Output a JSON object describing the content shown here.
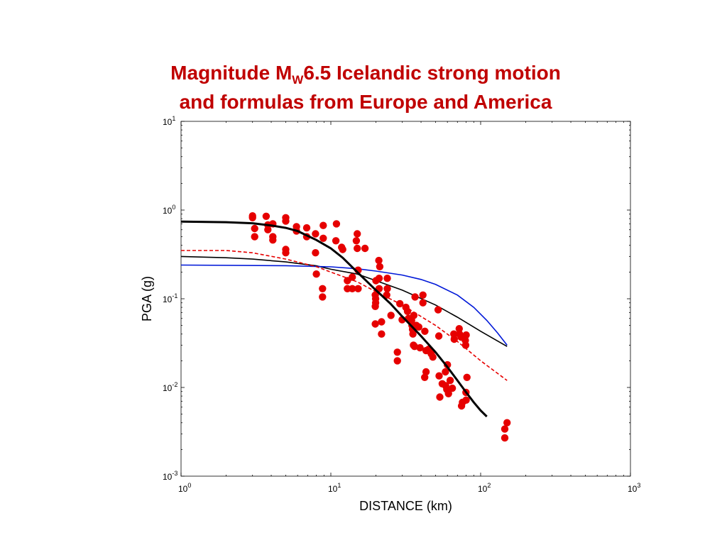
{
  "slide": {
    "title_part1": "Magnitude M",
    "title_sub": "W",
    "title_part2": "6.5 Icelandic strong motion",
    "title_line2": "and formulas from Europe and America"
  },
  "chart_data": {
    "type": "scatter",
    "xlabel": "DISTANCE (km)",
    "ylabel": "PGA (g)",
    "xscale": "log",
    "yscale": "log",
    "xlim": [
      1,
      1000
    ],
    "ylim": [
      0.001,
      10
    ],
    "x_tick_labels": [
      {
        "base": "10",
        "exp": "0",
        "value": 1
      },
      {
        "base": "10",
        "exp": "1",
        "value": 10
      },
      {
        "base": "10",
        "exp": "2",
        "value": 100
      },
      {
        "base": "10",
        "exp": "3",
        "value": 1000
      }
    ],
    "y_tick_labels": [
      {
        "base": "10",
        "exp": "-3",
        "value": 0.001
      },
      {
        "base": "10",
        "exp": "-2",
        "value": 0.01
      },
      {
        "base": "10",
        "exp": "-1",
        "value": 0.1
      },
      {
        "base": "10",
        "exp": "0",
        "value": 1
      },
      {
        "base": "10",
        "exp": "1",
        "value": 10
      }
    ],
    "grid": false,
    "colors": {
      "points": "#e60000",
      "thick": "#000000",
      "thin": "#000000",
      "blue": "#0018d8",
      "dashed": "#e60000"
    },
    "points": [
      [
        3.0,
        0.86
      ],
      [
        3.0,
        0.82
      ],
      [
        3.1,
        0.62
      ],
      [
        3.1,
        0.5
      ],
      [
        3.7,
        0.85
      ],
      [
        3.8,
        0.68
      ],
      [
        3.8,
        0.6
      ],
      [
        4.1,
        0.7
      ],
      [
        4.1,
        0.5
      ],
      [
        4.1,
        0.46
      ],
      [
        5.0,
        0.82
      ],
      [
        5.0,
        0.75
      ],
      [
        5.0,
        0.36
      ],
      [
        5.0,
        0.33
      ],
      [
        5.9,
        0.65
      ],
      [
        5.9,
        0.58
      ],
      [
        6.9,
        0.63
      ],
      [
        6.9,
        0.5
      ],
      [
        7.9,
        0.54
      ],
      [
        7.9,
        0.33
      ],
      [
        8.0,
        0.19
      ],
      [
        8.9,
        0.67
      ],
      [
        8.9,
        0.48
      ],
      [
        8.8,
        0.13
      ],
      [
        8.8,
        0.105
      ],
      [
        10.9,
        0.7
      ],
      [
        10.8,
        0.45
      ],
      [
        11.8,
        0.38
      ],
      [
        12.0,
        0.36
      ],
      [
        12.9,
        0.16
      ],
      [
        12.9,
        0.13
      ],
      [
        13.9,
        0.175
      ],
      [
        13.9,
        0.13
      ],
      [
        15.0,
        0.54
      ],
      [
        14.8,
        0.45
      ],
      [
        15.0,
        0.37
      ],
      [
        15.2,
        0.21
      ],
      [
        15.2,
        0.13
      ],
      [
        16.9,
        0.37
      ],
      [
        20.0,
        0.16
      ],
      [
        19.8,
        0.11
      ],
      [
        19.9,
        0.1
      ],
      [
        19.9,
        0.09
      ],
      [
        19.8,
        0.082
      ],
      [
        19.8,
        0.052
      ],
      [
        20.9,
        0.27
      ],
      [
        21.2,
        0.23
      ],
      [
        21.0,
        0.17
      ],
      [
        21.0,
        0.13
      ],
      [
        21.8,
        0.055
      ],
      [
        21.8,
        0.04
      ],
      [
        23.8,
        0.17
      ],
      [
        23.8,
        0.13
      ],
      [
        23.6,
        0.11
      ],
      [
        25.2,
        0.065
      ],
      [
        27.8,
        0.025
      ],
      [
        27.8,
        0.02
      ],
      [
        28.9,
        0.088
      ],
      [
        29.9,
        0.058
      ],
      [
        31.7,
        0.08
      ],
      [
        32.5,
        0.072
      ],
      [
        33.0,
        0.06
      ],
      [
        34.6,
        0.057
      ],
      [
        34.8,
        0.05
      ],
      [
        35.1,
        0.045
      ],
      [
        36.5,
        0.105
      ],
      [
        35.8,
        0.065
      ],
      [
        35.3,
        0.04
      ],
      [
        35.6,
        0.03
      ],
      [
        36.2,
        0.029
      ],
      [
        37.2,
        0.05
      ],
      [
        38.6,
        0.048
      ],
      [
        39.4,
        0.028
      ],
      [
        41.2,
        0.11
      ],
      [
        41.2,
        0.09
      ],
      [
        42.4,
        0.043
      ],
      [
        43.2,
        0.026
      ],
      [
        43.2,
        0.015
      ],
      [
        42.3,
        0.013
      ],
      [
        45.1,
        0.027
      ],
      [
        46.8,
        0.024
      ],
      [
        48.0,
        0.022
      ],
      [
        52.0,
        0.075
      ],
      [
        52.6,
        0.038
      ],
      [
        52.8,
        0.0135
      ],
      [
        53.4,
        0.0078
      ],
      [
        55.4,
        0.011
      ],
      [
        58.2,
        0.015
      ],
      [
        58.4,
        0.0105
      ],
      [
        59.4,
        0.0095
      ],
      [
        60.0,
        0.018
      ],
      [
        61.0,
        0.0085
      ],
      [
        62.6,
        0.012
      ],
      [
        64.7,
        0.0098
      ],
      [
        66.2,
        0.04
      ],
      [
        66.6,
        0.035
      ],
      [
        71.9,
        0.046
      ],
      [
        72.2,
        0.04
      ],
      [
        74.1,
        0.037
      ],
      [
        74.6,
        0.0062
      ],
      [
        75.6,
        0.0068
      ],
      [
        79.0,
        0.034
      ],
      [
        79.4,
        0.03
      ],
      [
        80.0,
        0.039
      ],
      [
        79.8,
        0.0088
      ],
      [
        80.0,
        0.0072
      ],
      [
        81.0,
        0.013
      ],
      [
        145.0,
        0.0034
      ],
      [
        145.0,
        0.0027
      ],
      [
        150.0,
        0.004
      ]
    ],
    "curves": {
      "thick_black": [
        [
          1.0,
          0.74
        ],
        [
          2.0,
          0.73
        ],
        [
          3.0,
          0.71
        ],
        [
          4.0,
          0.67
        ],
        [
          5.0,
          0.63
        ],
        [
          6.0,
          0.58
        ],
        [
          8.0,
          0.46
        ],
        [
          10.0,
          0.37
        ],
        [
          12.0,
          0.29
        ],
        [
          15.0,
          0.2
        ],
        [
          20.0,
          0.125
        ],
        [
          25.0,
          0.088
        ],
        [
          30.0,
          0.063
        ],
        [
          40.0,
          0.038
        ],
        [
          50.0,
          0.025
        ],
        [
          60.0,
          0.017
        ],
        [
          70.0,
          0.012
        ],
        [
          80.0,
          0.0088
        ],
        [
          90.0,
          0.0068
        ],
        [
          100.0,
          0.0055
        ],
        [
          110.0,
          0.0047
        ]
      ],
      "thin_black": [
        [
          1.0,
          0.3
        ],
        [
          2.0,
          0.29
        ],
        [
          3.0,
          0.28
        ],
        [
          5.0,
          0.26
        ],
        [
          8.0,
          0.235
        ],
        [
          10.0,
          0.215
        ],
        [
          15.0,
          0.19
        ],
        [
          20.0,
          0.16
        ],
        [
          30.0,
          0.125
        ],
        [
          50.0,
          0.085
        ],
        [
          70.0,
          0.062
        ],
        [
          100.0,
          0.043
        ],
        [
          150.0,
          0.029
        ]
      ],
      "blue": [
        [
          1.0,
          0.24
        ],
        [
          5.0,
          0.236
        ],
        [
          10.0,
          0.229
        ],
        [
          15.0,
          0.218
        ],
        [
          20.0,
          0.205
        ],
        [
          30.0,
          0.185
        ],
        [
          40.0,
          0.165
        ],
        [
          50.0,
          0.145
        ],
        [
          70.0,
          0.11
        ],
        [
          90.0,
          0.08
        ],
        [
          110.0,
          0.057
        ],
        [
          130.0,
          0.041
        ],
        [
          150.0,
          0.03
        ]
      ],
      "red_dashed": [
        [
          1.0,
          0.35
        ],
        [
          2.0,
          0.35
        ],
        [
          3.0,
          0.33
        ],
        [
          5.0,
          0.28
        ],
        [
          8.0,
          0.23
        ],
        [
          10.0,
          0.2
        ],
        [
          15.0,
          0.155
        ],
        [
          20.0,
          0.12
        ],
        [
          30.0,
          0.085
        ],
        [
          50.0,
          0.05
        ],
        [
          70.0,
          0.033
        ],
        [
          100.0,
          0.02
        ],
        [
          150.0,
          0.012
        ]
      ]
    }
  }
}
